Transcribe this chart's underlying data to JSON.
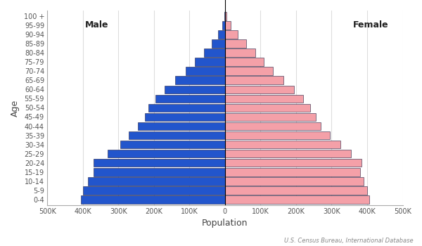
{
  "age_groups": [
    "0-4",
    "5-9",
    "10-14",
    "15-19",
    "20-24",
    "25-29",
    "30-34",
    "35-39",
    "40-44",
    "45-49",
    "50-54",
    "55-59",
    "60-64",
    "65-69",
    "70-74",
    "75-79",
    "80-84",
    "85-89",
    "90-94",
    "95-99",
    "100 +"
  ],
  "male": [
    405000,
    400000,
    385000,
    370000,
    370000,
    330000,
    295000,
    270000,
    245000,
    225000,
    215000,
    195000,
    170000,
    140000,
    110000,
    85000,
    60000,
    38000,
    20000,
    8000,
    2000
  ],
  "female": [
    405000,
    400000,
    390000,
    380000,
    385000,
    355000,
    325000,
    295000,
    270000,
    255000,
    240000,
    220000,
    195000,
    165000,
    135000,
    110000,
    85000,
    60000,
    35000,
    16000,
    5000
  ],
  "male_color": "#2255CC",
  "female_color": "#F4A0A8",
  "male_edge_color": "#222244",
  "female_edge_color": "#222244",
  "xlabel": "Population",
  "ylabel": "Age",
  "male_label": "Male",
  "female_label": "Female",
  "xlim": 500000,
  "tick_labels": [
    "500K",
    "400K",
    "300K",
    "200K",
    "100K",
    "0",
    "100K",
    "200K",
    "300K",
    "400K",
    "500K"
  ],
  "source_text": "U.S. Census Bureau, International Database",
  "background_color": "#FFFFFF",
  "grid_color": "#DDDDDD",
  "bar_height": 0.88
}
